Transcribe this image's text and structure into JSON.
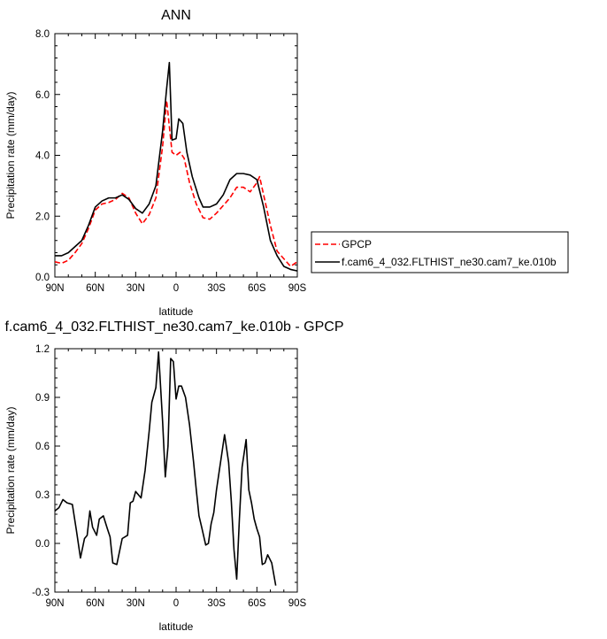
{
  "chart_data": [
    {
      "type": "line",
      "title": "ANN",
      "xlabel": "latitude",
      "ylabel": "Precipitation rate (mm/day)",
      "xlim": [
        -90,
        90
      ],
      "ylim": [
        0,
        8
      ],
      "x_reversed": true,
      "x_ticks": [
        -90,
        -60,
        -30,
        0,
        30,
        60,
        90
      ],
      "x_tick_labels": [
        "90N",
        "60N",
        "30N",
        "0",
        "30S",
        "60S",
        "90S"
      ],
      "y_ticks": [
        0,
        2,
        4,
        6,
        8
      ],
      "y_tick_labels": [
        "0.0",
        "2.0",
        "4.0",
        "6.0",
        "8.0"
      ],
      "grid": false,
      "legend_position": "outside-right",
      "series": [
        {
          "name": "GPCP",
          "color": "#ff0000",
          "dash": "dashed",
          "points": [
            [
              -90,
              0.5
            ],
            [
              -85,
              0.45
            ],
            [
              -80,
              0.55
            ],
            [
              -75,
              0.8
            ],
            [
              -70,
              1.1
            ],
            [
              -65,
              1.6
            ],
            [
              -60,
              2.2
            ],
            [
              -55,
              2.4
            ],
            [
              -50,
              2.45
            ],
            [
              -45,
              2.55
            ],
            [
              -40,
              2.75
            ],
            [
              -35,
              2.6
            ],
            [
              -30,
              2.1
            ],
            [
              -25,
              1.75
            ],
            [
              -20,
              2.05
            ],
            [
              -15,
              2.6
            ],
            [
              -10,
              4.3
            ],
            [
              -7,
              5.8
            ],
            [
              -5,
              4.95
            ],
            [
              -3,
              4.1
            ],
            [
              0,
              4.0
            ],
            [
              3,
              4.1
            ],
            [
              6,
              3.9
            ],
            [
              10,
              3.1
            ],
            [
              15,
              2.4
            ],
            [
              20,
              1.95
            ],
            [
              25,
              1.9
            ],
            [
              30,
              2.1
            ],
            [
              35,
              2.35
            ],
            [
              40,
              2.6
            ],
            [
              45,
              2.95
            ],
            [
              50,
              2.95
            ],
            [
              55,
              2.8
            ],
            [
              60,
              3.1
            ],
            [
              62,
              3.3
            ],
            [
              65,
              2.7
            ],
            [
              70,
              1.7
            ],
            [
              75,
              0.85
            ],
            [
              80,
              0.6
            ],
            [
              85,
              0.35
            ],
            [
              90,
              0.5
            ]
          ]
        },
        {
          "name": "f.cam6_4_032.FLTHIST_ne30.cam7_ke.010b",
          "color": "#000000",
          "dash": "solid",
          "points": [
            [
              -90,
              0.7
            ],
            [
              -85,
              0.7
            ],
            [
              -80,
              0.8
            ],
            [
              -75,
              1.0
            ],
            [
              -70,
              1.2
            ],
            [
              -65,
              1.7
            ],
            [
              -60,
              2.3
            ],
            [
              -55,
              2.5
            ],
            [
              -50,
              2.6
            ],
            [
              -45,
              2.6
            ],
            [
              -40,
              2.7
            ],
            [
              -35,
              2.55
            ],
            [
              -30,
              2.25
            ],
            [
              -25,
              2.1
            ],
            [
              -20,
              2.4
            ],
            [
              -15,
              3.0
            ],
            [
              -10,
              4.8
            ],
            [
              -7,
              6.2
            ],
            [
              -5,
              7.05
            ],
            [
              -3,
              4.5
            ],
            [
              0,
              4.55
            ],
            [
              2,
              5.2
            ],
            [
              5,
              5.05
            ],
            [
              8,
              4.1
            ],
            [
              12,
              3.3
            ],
            [
              17,
              2.6
            ],
            [
              20,
              2.3
            ],
            [
              25,
              2.3
            ],
            [
              30,
              2.4
            ],
            [
              35,
              2.7
            ],
            [
              40,
              3.2
            ],
            [
              45,
              3.4
            ],
            [
              50,
              3.4
            ],
            [
              55,
              3.35
            ],
            [
              60,
              3.2
            ],
            [
              65,
              2.3
            ],
            [
              70,
              1.2
            ],
            [
              75,
              0.7
            ],
            [
              80,
              0.35
            ],
            [
              85,
              0.25
            ],
            [
              90,
              0.2
            ]
          ]
        }
      ]
    },
    {
      "type": "line",
      "title": "f.cam6_4_032.FLTHIST_ne30.cam7_ke.010b - GPCP",
      "xlabel": "latitude",
      "ylabel": "Precipitation rate (mm/day)",
      "xlim": [
        -90,
        90
      ],
      "ylim": [
        -0.3,
        1.2
      ],
      "x_reversed": true,
      "x_ticks": [
        -90,
        -60,
        -30,
        0,
        30,
        60,
        90
      ],
      "x_tick_labels": [
        "90N",
        "60N",
        "30N",
        "0",
        "30S",
        "60S",
        "90S"
      ],
      "y_ticks": [
        -0.3,
        0,
        0.3,
        0.6,
        0.9,
        1.2
      ],
      "y_tick_labels": [
        "-0.3",
        "0.0",
        "0.3",
        "0.6",
        "0.9",
        "1.2"
      ],
      "grid": false,
      "series": [
        {
          "color": "#000000",
          "dash": "solid",
          "points": [
            [
              -90,
              0.2
            ],
            [
              -87,
              0.22
            ],
            [
              -84,
              0.27
            ],
            [
              -81,
              0.25
            ],
            [
              -77,
              0.24
            ],
            [
              -74,
              0.08
            ],
            [
              -71,
              -0.09
            ],
            [
              -68,
              0.03
            ],
            [
              -66,
              0.05
            ],
            [
              -64,
              0.2
            ],
            [
              -62,
              0.1
            ],
            [
              -59,
              0.05
            ],
            [
              -57,
              0.15
            ],
            [
              -54,
              0.17
            ],
            [
              -51,
              0.09
            ],
            [
              -49,
              0.04
            ],
            [
              -47,
              -0.12
            ],
            [
              -44,
              -0.13
            ],
            [
              -40,
              0.03
            ],
            [
              -36,
              0.05
            ],
            [
              -34,
              0.25
            ],
            [
              -32,
              0.26
            ],
            [
              -30,
              0.32
            ],
            [
              -28,
              0.3
            ],
            [
              -26,
              0.28
            ],
            [
              -23,
              0.45
            ],
            [
              -20,
              0.69
            ],
            [
              -18,
              0.87
            ],
            [
              -15,
              0.96
            ],
            [
              -13,
              1.18
            ],
            [
              -10,
              0.75
            ],
            [
              -8,
              0.41
            ],
            [
              -6,
              0.6
            ],
            [
              -4,
              1.14
            ],
            [
              -2,
              1.12
            ],
            [
              0,
              0.89
            ],
            [
              2,
              0.97
            ],
            [
              4,
              0.97
            ],
            [
              7,
              0.9
            ],
            [
              10,
              0.73
            ],
            [
              13,
              0.5
            ],
            [
              15,
              0.33
            ],
            [
              17,
              0.17
            ],
            [
              19,
              0.1
            ],
            [
              22,
              -0.01
            ],
            [
              24,
              0.0
            ],
            [
              26,
              0.12
            ],
            [
              28,
              0.19
            ],
            [
              30,
              0.33
            ],
            [
              33,
              0.5
            ],
            [
              36,
              0.67
            ],
            [
              39,
              0.5
            ],
            [
              41,
              0.26
            ],
            [
              43,
              -0.04
            ],
            [
              45,
              -0.22
            ],
            [
              47,
              0.15
            ],
            [
              49,
              0.47
            ],
            [
              52,
              0.64
            ],
            [
              54,
              0.33
            ],
            [
              56,
              0.25
            ],
            [
              58,
              0.15
            ],
            [
              60,
              0.09
            ],
            [
              62,
              0.04
            ],
            [
              64,
              -0.13
            ],
            [
              66,
              -0.12
            ],
            [
              68,
              -0.07
            ],
            [
              71,
              -0.12
            ],
            [
              74,
              -0.26
            ]
          ]
        }
      ]
    }
  ]
}
